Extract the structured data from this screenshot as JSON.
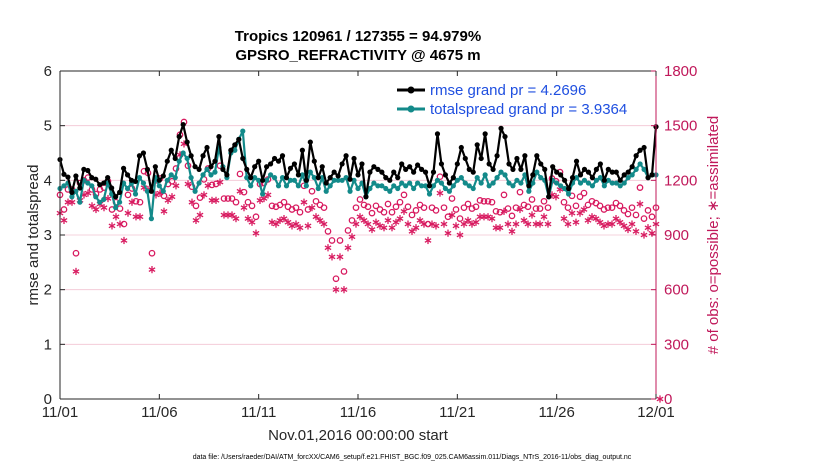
{
  "chart_data": {
    "type": "line",
    "title": "Tropics 120961 / 127355 = 94.979%",
    "subtitle": "GPSRO_REFRACTIVITY @ 4675 m",
    "xlabel": "Nov.01,2016 00:00:00 start",
    "ylabel": "rmse and totalspread",
    "ylabel_right": "# of obs: o=possible; ∗=assimilated",
    "footnote": "data file: /Users/raeder/DAI/ATM_forcXX/CAM6_setup/f.e21.FHIST_BGC.f09_025.CAM6assim.011/Diags_NTrS_2016-11/obs_diag_output.nc",
    "x_tick_labels": [
      "11/01",
      "11/06",
      "11/11",
      "11/16",
      "11/21",
      "11/26",
      "12/01"
    ],
    "x_tick_days": [
      0,
      5,
      10,
      15,
      20,
      25,
      30
    ],
    "xlim": [
      0,
      30
    ],
    "ylim": [
      0,
      6
    ],
    "y_ticks": [
      0,
      1,
      2,
      3,
      4,
      5,
      6
    ],
    "ylim_right": [
      0,
      1800
    ],
    "y_ticks_right": [
      0,
      300,
      600,
      900,
      1200,
      1500,
      1800
    ],
    "colors": {
      "rmse": "#000000",
      "spread": "#138a8a",
      "obs": "#d81b60",
      "legend_text": "#1f4fe0",
      "axis_right": "#c0185a"
    },
    "series": [
      {
        "name": "rmse grand pr = 4.2696",
        "color": "#000000",
        "values": [
          4.38,
          4.11,
          4.06,
          3.78,
          4.08,
          3.86,
          4.2,
          4.18,
          4.05,
          4.02,
          3.92,
          3.95,
          4.05,
          3.86,
          3.7,
          3.78,
          4.22,
          4.1,
          4.0,
          3.98,
          4.45,
          4.5,
          4.2,
          3.8,
          4.25,
          4.0,
          4.08,
          4.35,
          4.55,
          4.4,
          4.8,
          5.02,
          4.7,
          4.45,
          4.25,
          4.2,
          4.45,
          4.6,
          4.25,
          4.35,
          4.8,
          4.2,
          4.1,
          4.55,
          4.65,
          4.75,
          4.4,
          4.2,
          4.05,
          4.25,
          4.35,
          4.0,
          4.25,
          4.3,
          4.4,
          4.35,
          4.45,
          4.05,
          4.22,
          4.3,
          4.1,
          4.55,
          4.0,
          4.7,
          4.35,
          4.05,
          4.25,
          3.95,
          4.05,
          4.15,
          4.08,
          4.3,
          4.45,
          4.02,
          4.4,
          4.1,
          4.3,
          3.7,
          4.15,
          4.25,
          4.2,
          4.15,
          4.05,
          4.0,
          4.15,
          4.05,
          4.3,
          4.2,
          4.25,
          4.15,
          4.28,
          4.2,
          4.15,
          3.9,
          4.15,
          4.85,
          4.3,
          4.1,
          3.95,
          4.05,
          4.3,
          4.6,
          4.4,
          4.2,
          4.15,
          4.65,
          4.4,
          4.85,
          4.3,
          4.2,
          4.45,
          4.95,
          4.8,
          4.3,
          4.2,
          4.4,
          4.2,
          4.45,
          3.9,
          4.1,
          4.45,
          4.3,
          4.2,
          3.7,
          4.25,
          4.15,
          4.1,
          4.0,
          3.85,
          4.05,
          4.35,
          4.1,
          4.2,
          4.15,
          4.05,
          4.2,
          4.3,
          4.0,
          4.2,
          4.15,
          4.15,
          4.0,
          4.1,
          4.15,
          4.25,
          4.45,
          4.55,
          4.6,
          4.05,
          4.1,
          4.98
        ]
      },
      {
        "name": "totalspread grand pr = 3.9364",
        "color": "#138a8a",
        "values": [
          3.85,
          3.9,
          3.95,
          3.7,
          3.8,
          3.6,
          4.0,
          3.95,
          3.9,
          3.7,
          3.6,
          3.65,
          3.95,
          3.75,
          3.5,
          3.6,
          3.95,
          3.85,
          3.95,
          3.75,
          4.05,
          3.95,
          3.8,
          3.3,
          4.05,
          3.9,
          3.8,
          4.0,
          4.1,
          4.05,
          4.35,
          4.5,
          4.4,
          4.05,
          3.8,
          3.95,
          4.1,
          4.2,
          4.1,
          4.15,
          4.6,
          4.25,
          4.05,
          4.5,
          4.55,
          4.75,
          4.9,
          4.05,
          3.9,
          4.05,
          4.0,
          3.75,
          4.0,
          4.1,
          4.05,
          3.9,
          4.05,
          3.9,
          4.0,
          4.0,
          3.9,
          4.1,
          3.9,
          4.15,
          4.05,
          3.85,
          4.05,
          3.8,
          3.9,
          4.0,
          4.0,
          4.0,
          4.05,
          3.8,
          4.0,
          3.85,
          3.95,
          3.7,
          3.85,
          3.95,
          3.9,
          3.9,
          3.85,
          3.8,
          3.9,
          3.85,
          3.95,
          3.9,
          3.95,
          3.85,
          3.95,
          3.9,
          3.9,
          3.75,
          3.9,
          4.0,
          3.95,
          3.85,
          3.8,
          3.9,
          4.0,
          4.05,
          3.95,
          3.9,
          3.85,
          4.05,
          3.95,
          4.1,
          3.9,
          3.95,
          4.05,
          4.15,
          4.1,
          3.95,
          3.9,
          4.0,
          3.95,
          4.1,
          3.8,
          3.95,
          4.15,
          4.05,
          4.0,
          3.7,
          4.0,
          3.95,
          3.9,
          3.85,
          3.75,
          3.95,
          4.05,
          3.95,
          4.0,
          3.95,
          3.9,
          4.0,
          4.05,
          3.9,
          4.0,
          3.95,
          3.95,
          3.9,
          3.95,
          4.05,
          4.1,
          4.2,
          4.3,
          4.2,
          4.05,
          4.1,
          4.1
        ]
      }
    ],
    "obs_possible": [
      1120,
      1040,
      1150,
      1150,
      800,
      1185,
      1200,
      1215,
      1150,
      1125,
      1150,
      1160,
      1195,
      1040,
      1080,
      1045,
      960,
      1120,
      1155,
      1085,
      1080,
      1250,
      1240,
      800,
      1200,
      1210,
      1115,
      1180,
      1195,
      1265,
      1450,
      1520,
      1280,
      1165,
      1060,
      1105,
      1205,
      1265,
      1175,
      1180,
      1280,
      1100,
      1100,
      1100,
      1080,
      1235,
      1135,
      1080,
      1060,
      1000,
      1180,
      1185,
      1205,
      1060,
      1055,
      1065,
      1080,
      1055,
      1040,
      1050,
      1025,
      1170,
      1040,
      1140,
      1085,
      1065,
      1050,
      920,
      870,
      660,
      870,
      700,
      925,
      980,
      1050,
      1095,
      1065,
      1055,
      1020,
      1060,
      1040,
      1025,
      1070,
      1025,
      1055,
      1080,
      1120,
      1055,
      1010,
      1035,
      1065,
      1050,
      960,
      1050,
      1035,
      1220,
      1050,
      1000,
      1100,
      1040,
      990,
      1050,
      1070,
      1045,
      1055,
      1090,
      1085,
      1085,
      1080,
      1030,
      1025,
      1120,
      1045,
      1005,
      1050,
      1135,
      1065,
      1055,
      1095,
      1045,
      1045,
      1085,
      1050,
      1210,
      1195,
      1245,
      1080,
      1050,
      1115,
      1060,
      1110,
      1130,
      1065,
      1085,
      1075,
      1060,
      1040,
      1050,
      1050,
      1075,
      1060,
      1035,
      1015,
      1050,
      1010,
      1160,
      990,
      1035,
      1000,
      1050
    ],
    "obs_assimilated": [
      1020,
      980,
      1080,
      1080,
      700,
      1090,
      1120,
      1130,
      1060,
      1040,
      1070,
      1050,
      1100,
      950,
      1000,
      960,
      870,
      1020,
      1080,
      1000,
      1000,
      1160,
      1150,
      710,
      1120,
      1130,
      1030,
      1090,
      1110,
      1170,
      1340,
      1400,
      1180,
      1080,
      980,
      1010,
      1120,
      1170,
      1090,
      1090,
      1190,
      1010,
      1010,
      1010,
      990,
      1140,
      1050,
      990,
      970,
      910,
      1090,
      1100,
      1120,
      970,
      960,
      980,
      990,
      970,
      950,
      960,
      940,
      1080,
      950,
      1050,
      1000,
      980,
      960,
      830,
      780,
      600,
      780,
      600,
      830,
      890,
      960,
      1000,
      980,
      960,
      930,
      970,
      950,
      940,
      980,
      940,
      970,
      990,
      1030,
      960,
      920,
      940,
      980,
      960,
      870,
      960,
      950,
      1130,
      960,
      910,
      1010,
      950,
      900,
      960,
      980,
      960,
      970,
      1000,
      1000,
      1000,
      990,
      940,
      940,
      1030,
      960,
      920,
      960,
      1040,
      980,
      960,
      1010,
      960,
      960,
      1000,
      960,
      1120,
      1110,
      1150,
      990,
      960,
      1020,
      970,
      1020,
      1040,
      980,
      1000,
      990,
      970,
      950,
      960,
      960,
      990,
      970,
      950,
      930,
      960,
      920,
      1070,
      900,
      940,
      910,
      960,
      0
    ],
    "legend_location": "top-right"
  }
}
